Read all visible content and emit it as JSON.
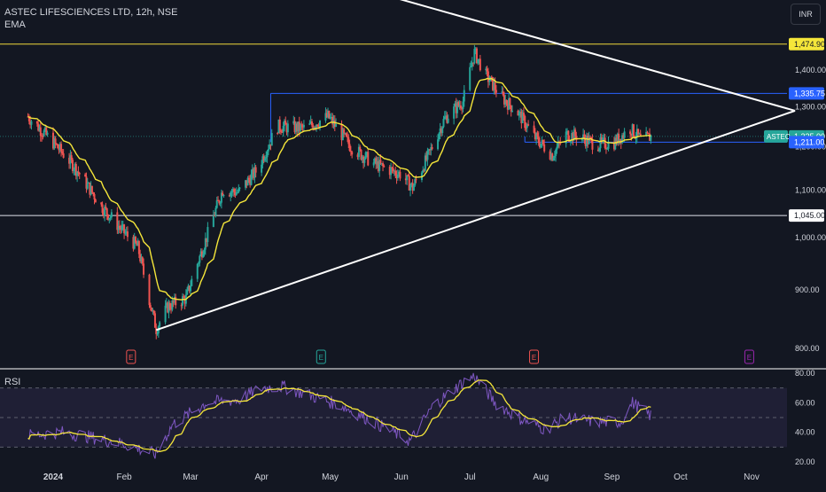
{
  "header": {
    "symbol_line": "ASTEC LIFESCIENCES LTD, 12h, NSE",
    "indicator": "EMA",
    "currency": "INR"
  },
  "rsi_panel": {
    "label": "RSI"
  },
  "price_tags": [
    {
      "text": "1,474.90",
      "value": 1474.9,
      "bg": "#f5e63a",
      "fg": "#131722",
      "kind": "hline",
      "line": "#f0d83a"
    },
    {
      "text": "1,335.75",
      "value": 1335.75,
      "bg": "#2962ff",
      "fg": "#ffffff",
      "kind": "box",
      "line": "#2962ff"
    },
    {
      "text": "1,225.00",
      "value": 1225.0,
      "bg": "#26a69a",
      "fg": "#ffffff",
      "kind": "last",
      "name": "ASTEC",
      "line": "#26a69a"
    },
    {
      "text": "1,211.00",
      "value": 1211.0,
      "bg": "#2962ff",
      "fg": "#ffffff",
      "kind": "box",
      "line": "#2962ff"
    },
    {
      "text": "1,045.00",
      "value": 1045.0,
      "bg": "#ffffff",
      "fg": "#131722",
      "kind": "hline",
      "line": "#e0e3eb"
    }
  ],
  "chart_data": [
    {
      "type": "candlestick",
      "title": "ASTEC LIFESCIENCES LTD, 12h, NSE",
      "interval": "12h",
      "exchange": "NSE",
      "currency": "INR",
      "y_ticks": [
        800,
        900,
        1000,
        1100,
        1200,
        1300,
        1400
      ],
      "y_tick_labels": [
        "800.00",
        "900.00",
        "1,000.00",
        "1,100.00",
        "1,200.00",
        "1,300.00",
        "1,400.00"
      ],
      "ylim": [
        770,
        1530
      ],
      "x_tick_labels": [
        "2024",
        "Feb",
        "Mar",
        "Apr",
        "May",
        "Jun",
        "Jul",
        "Aug",
        "Sep",
        "Oct",
        "Nov"
      ],
      "x_tick_bold": [
        true,
        false,
        false,
        false,
        false,
        false,
        false,
        false,
        false,
        false,
        false
      ],
      "last_price": 1225.0,
      "price_path": [
        [
          "2023-12-21",
          1275
        ],
        [
          "2024-01-01",
          1210
        ],
        [
          "2024-01-10",
          1155
        ],
        [
          "2024-01-22",
          1065
        ],
        [
          "2024-01-31",
          1015
        ],
        [
          "2024-02-07",
          980
        ],
        [
          "2024-02-11",
          900
        ],
        [
          "2024-02-15",
          832
        ],
        [
          "2024-02-20",
          870
        ],
        [
          "2024-02-28",
          885
        ],
        [
          "2024-03-08",
          1000
        ],
        [
          "2024-03-15",
          1100
        ],
        [
          "2024-03-22",
          1095
        ],
        [
          "2024-03-30",
          1145
        ],
        [
          "2024-04-08",
          1250
        ],
        [
          "2024-04-20",
          1245
        ],
        [
          "2024-04-30",
          1275
        ],
        [
          "2024-05-10",
          1200
        ],
        [
          "2024-05-20",
          1160
        ],
        [
          "2024-06-01",
          1135
        ],
        [
          "2024-06-06",
          1105
        ],
        [
          "2024-06-13",
          1180
        ],
        [
          "2024-06-20",
          1270
        ],
        [
          "2024-06-28",
          1315
        ],
        [
          "2024-07-03",
          1450
        ],
        [
          "2024-07-08",
          1385
        ],
        [
          "2024-07-15",
          1325
        ],
        [
          "2024-07-22",
          1285
        ],
        [
          "2024-07-29",
          1225
        ],
        [
          "2024-08-06",
          1180
        ],
        [
          "2024-08-12",
          1230
        ],
        [
          "2024-08-18",
          1225
        ],
        [
          "2024-08-25",
          1205
        ],
        [
          "2024-09-02",
          1210
        ],
        [
          "2024-09-09",
          1245
        ],
        [
          "2024-09-14",
          1215
        ],
        [
          "2024-09-18",
          1225
        ]
      ],
      "series": [
        {
          "name": "EMA",
          "color": "#f5e63a"
        }
      ],
      "annotations": {
        "trendlines": [
          {
            "from": [
              "2024-02-15",
              830
            ],
            "to": [
              "2024-11-20",
              1290
            ],
            "color": "#ffffff"
          },
          {
            "from": [
              "2024-05-10",
              1660
            ],
            "to": [
              "2024-11-20",
              1290
            ],
            "color": "#ffffff"
          }
        ],
        "boxes": [
          {
            "from": [
              "2024-04-05",
              1335.75
            ],
            "to": [
              "2024-11-20",
              1335.75
            ],
            "color": "#2962ff"
          },
          {
            "from": [
              "2024-07-25",
              1211
            ],
            "to": [
              "2024-11-20",
              1211
            ],
            "color": "#2962ff"
          }
        ],
        "earnings_markers": [
          {
            "date": "2024-02-04",
            "label": "E",
            "color": "#ef5350"
          },
          {
            "date": "2024-04-27",
            "label": "E",
            "color": "#26a69a"
          },
          {
            "date": "2024-07-29",
            "label": "E",
            "color": "#ef5350"
          },
          {
            "date": "2024-10-31",
            "label": "E",
            "color": "#9c27b0"
          }
        ]
      }
    },
    {
      "type": "line",
      "title": "RSI",
      "ylim": [
        18,
        85
      ],
      "y_ticks": [
        20,
        40,
        60,
        80
      ],
      "y_tick_labels": [
        "20.00",
        "40.00",
        "60.00",
        "80.00"
      ],
      "band": [
        30,
        70
      ],
      "midline": 50,
      "series": [
        {
          "name": "RSI",
          "color": "#7e57c2",
          "values": [
            [
              "2023-12-21",
              38
            ],
            [
              "2024-01-05",
              40
            ],
            [
              "2024-01-20",
              36
            ],
            [
              "2024-02-01",
              32
            ],
            [
              "2024-02-15",
              25
            ],
            [
              "2024-02-22",
              45
            ],
            [
              "2024-03-08",
              60
            ],
            [
              "2024-03-22",
              62
            ],
            [
              "2024-04-01",
              70
            ],
            [
              "2024-04-10",
              71
            ],
            [
              "2024-04-22",
              65
            ],
            [
              "2024-05-06",
              58
            ],
            [
              "2024-05-20",
              47
            ],
            [
              "2024-06-05",
              34
            ],
            [
              "2024-06-15",
              58
            ],
            [
              "2024-06-28",
              74
            ],
            [
              "2024-07-03",
              78
            ],
            [
              "2024-07-12",
              60
            ],
            [
              "2024-07-22",
              50
            ],
            [
              "2024-08-03",
              42
            ],
            [
              "2024-08-12",
              50
            ],
            [
              "2024-08-25",
              47
            ],
            [
              "2024-09-05",
              47
            ],
            [
              "2024-09-10",
              60
            ],
            [
              "2024-09-18",
              51
            ]
          ]
        },
        {
          "name": "RSI-based MA",
          "color": "#f5e63a"
        }
      ]
    }
  ]
}
